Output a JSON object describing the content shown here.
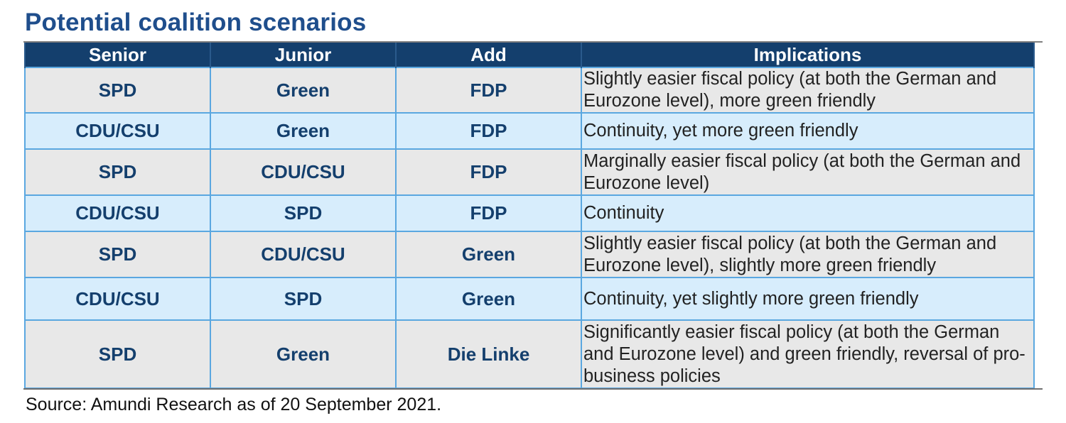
{
  "title": "Potential coalition scenarios",
  "table": {
    "headers": [
      "Senior",
      "Junior",
      "Add",
      "Implications"
    ],
    "rows": [
      {
        "senior": "SPD",
        "junior": "Green",
        "add": "FDP",
        "implications": "Slightly easier fiscal policy (at both the German and Eurozone level), more green friendly"
      },
      {
        "senior": "CDU/CSU",
        "junior": "Green",
        "add": "FDP",
        "implications": "Continuity, yet more green friendly"
      },
      {
        "senior": "SPD",
        "junior": "CDU/CSU",
        "add": "FDP",
        "implications": "Marginally easier fiscal policy (at both the German and Eurozone level)"
      },
      {
        "senior": "CDU/CSU",
        "junior": "SPD",
        "add": "FDP",
        "implications": "Continuity"
      },
      {
        "senior": "SPD",
        "junior": "CDU/CSU",
        "add": "Green",
        "implications": "Slightly easier fiscal policy (at both the German and Eurozone level), slightly more green friendly"
      },
      {
        "senior": "CDU/CSU",
        "junior": "SPD",
        "add": "Green",
        "implications": "Continuity, yet slightly more green friendly"
      },
      {
        "senior": "SPD",
        "junior": "Green",
        "add": "Die Linke",
        "implications": "Significantly easier fiscal policy (at both the German and Eurozone level) and green friendly, reversal of pro-business policies"
      }
    ]
  },
  "source": "Source: Amundi Research as of 20 September 2021.",
  "colors": {
    "title": "#1f4e8c",
    "header_bg": "#143f6d",
    "row_grey": "#e8e8e8",
    "row_blue": "#d7edfc",
    "grid": "#5aa7e0"
  }
}
